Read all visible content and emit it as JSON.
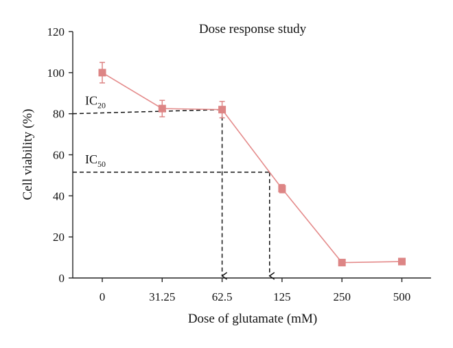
{
  "chart_data": {
    "type": "line",
    "title": "Dose response study",
    "xlabel": "Dose of glutamate (mM)",
    "ylabel": "Cell viability (%)",
    "categories": [
      "0",
      "31.25",
      "62.5",
      "125",
      "250",
      "500"
    ],
    "ylim": [
      0,
      120
    ],
    "yticks": [
      0,
      20,
      40,
      60,
      80,
      100,
      120
    ],
    "grid": false,
    "legend": "none",
    "series": [
      {
        "values": [
          100,
          82.5,
          82,
          43.5,
          7.5,
          8
        ],
        "errors": [
          5,
          4,
          4,
          2,
          0.5,
          0.5
        ],
        "color": "#e48a8a",
        "marker_color": "#dd8585"
      }
    ],
    "annotations": [
      {
        "label": "IC",
        "sub": "20",
        "y": 80,
        "x_category_position": 2.0
      },
      {
        "label": "IC",
        "sub": "50",
        "y": 51.5,
        "x_category_position": 3.0
      }
    ]
  }
}
